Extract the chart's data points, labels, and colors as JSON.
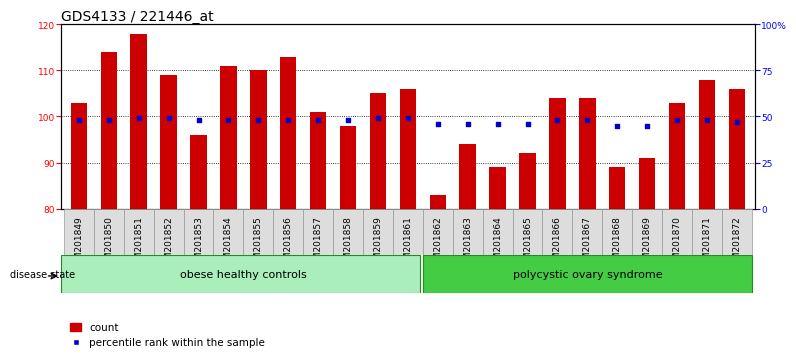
{
  "title": "GDS4133 / 221446_at",
  "samples": [
    "GSM201849",
    "GSM201850",
    "GSM201851",
    "GSM201852",
    "GSM201853",
    "GSM201854",
    "GSM201855",
    "GSM201856",
    "GSM201857",
    "GSM201858",
    "GSM201859",
    "GSM201861",
    "GSM201862",
    "GSM201863",
    "GSM201864",
    "GSM201865",
    "GSM201866",
    "GSM201867",
    "GSM201868",
    "GSM201869",
    "GSM201870",
    "GSM201871",
    "GSM201872"
  ],
  "counts": [
    103,
    114,
    118,
    109,
    96,
    111,
    110,
    113,
    101,
    98,
    105,
    106,
    83,
    94,
    89,
    92,
    104,
    104,
    89,
    91,
    103,
    108,
    106
  ],
  "percentile": [
    48,
    48,
    49,
    49,
    48,
    48,
    48,
    48,
    48,
    48,
    49,
    49,
    46,
    46,
    46,
    46,
    48,
    48,
    45,
    45,
    48,
    48,
    47
  ],
  "group1_label": "obese healthy controls",
  "group1_count": 12,
  "group2_label": "polycystic ovary syndrome",
  "group2_count": 11,
  "disease_state_label": "disease state",
  "ylim_left": [
    80,
    120
  ],
  "yticks_left": [
    80,
    90,
    100,
    110,
    120
  ],
  "ylim_right": [
    0,
    100
  ],
  "yticks_right": [
    0,
    25,
    50,
    75,
    100
  ],
  "bar_color": "#cc0000",
  "dot_color": "#0000cc",
  "bar_width": 0.55,
  "bg_color": "#ffffff",
  "plot_bg": "#ffffff",
  "grid_color": "#000000",
  "title_fontsize": 10,
  "tick_fontsize": 6.5,
  "label_fontsize": 8,
  "legend_fontsize": 7.5,
  "group1_color": "#aaeebb",
  "group2_color": "#44cc44",
  "xtick_bg": "#dddddd"
}
